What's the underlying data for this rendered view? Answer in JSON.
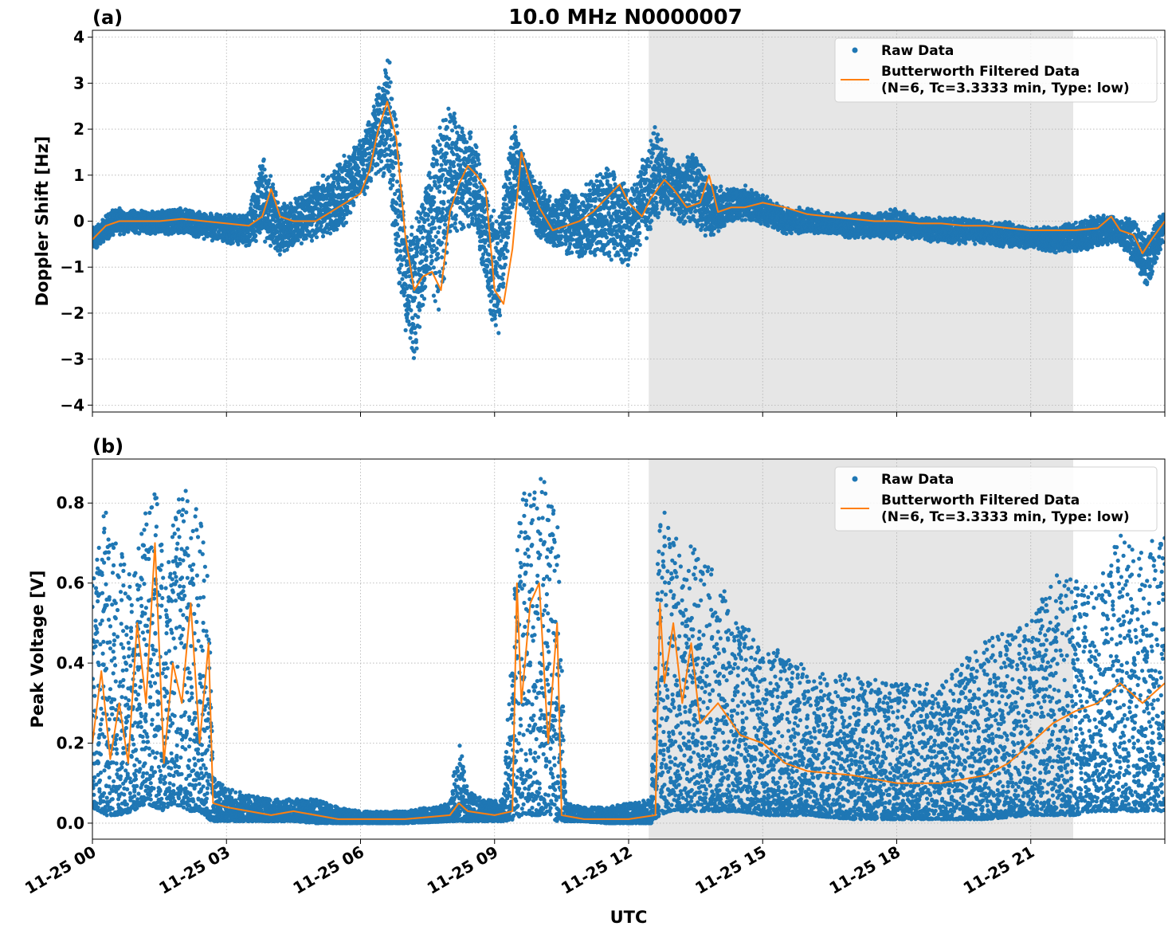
{
  "figure": {
    "title": "10.0 MHz N0000007",
    "xlabel": "UTC",
    "x_ticks": [
      "11-25 00",
      "11-25 03",
      "11-25 06",
      "11-25 09",
      "11-25 12",
      "11-25 15",
      "11-25 18",
      "11-25 21"
    ],
    "legend": {
      "raw": "Raw Data",
      "filtered_line1": "Butterworth Filtered Data",
      "filtered_line2": "(N=6, Tc=3.3333 min, Type: low)"
    },
    "colors": {
      "raw": "#1f77b4",
      "filtered": "#ff7f0e",
      "shade": "#e6e6e6",
      "grid": "#b0b0b0"
    }
  },
  "chart_data": [
    {
      "type": "scatter",
      "panel_label": "(a)",
      "ylabel": "Doppler Shift [Hz]",
      "x_unit": "hours UTC on 11-25",
      "xlim": [
        0,
        24
      ],
      "ylim": [
        -4.15,
        4.15
      ],
      "y_ticks": [
        -4,
        -3,
        -2,
        -1,
        0,
        1,
        2,
        3,
        4
      ],
      "y_tick_labels": [
        "−4",
        "−3",
        "−2",
        "−1",
        "0",
        "1",
        "2",
        "3",
        "4"
      ],
      "shaded_region": [
        12.45,
        21.95
      ],
      "grid": true,
      "legend_position": "upper right",
      "series": [
        {
          "name": "Raw Data",
          "style": "points",
          "envelope_x": [
            0,
            0.5,
            1.0,
            1.5,
            2.0,
            2.5,
            3.0,
            3.5,
            3.8,
            4.2,
            4.5,
            5.0,
            5.5,
            6.0,
            6.3,
            6.6,
            6.8,
            7.0,
            7.2,
            7.5,
            7.8,
            8.0,
            8.3,
            8.6,
            8.9,
            9.1,
            9.4,
            9.7,
            10.0,
            10.3,
            10.6,
            10.9,
            11.2,
            11.5,
            11.8,
            12.0,
            12.3,
            12.6,
            12.9,
            13.2,
            13.5,
            13.8,
            14.2,
            14.6,
            15.0,
            15.5,
            16.0,
            16.5,
            17.0,
            17.5,
            18.0,
            18.5,
            19.0,
            19.5,
            20.0,
            20.5,
            21.0,
            21.5,
            22.0,
            22.5,
            22.9,
            23.3,
            23.6,
            24.0
          ],
          "envelope_min": [
            -0.7,
            -0.3,
            -0.3,
            -0.3,
            -0.3,
            -0.4,
            -0.5,
            -0.6,
            -0.4,
            -0.8,
            -0.6,
            -0.4,
            -0.3,
            0.3,
            1.0,
            0.8,
            -1.2,
            -2.5,
            -3.3,
            -1.5,
            -2.2,
            -0.5,
            -0.2,
            -0.3,
            -2.2,
            -2.6,
            0.2,
            0.3,
            -0.5,
            -0.6,
            -0.7,
            -0.9,
            -0.8,
            -0.9,
            -0.9,
            -1.2,
            -0.5,
            -0.2,
            0.2,
            -0.1,
            -0.2,
            -0.4,
            -0.1,
            0.0,
            -0.1,
            -0.3,
            -0.3,
            -0.3,
            -0.4,
            -0.4,
            -0.4,
            -0.4,
            -0.5,
            -0.5,
            -0.5,
            -0.6,
            -0.6,
            -0.7,
            -0.7,
            -0.6,
            -0.5,
            -0.9,
            -1.5,
            -0.4
          ],
          "envelope_max": [
            -0.1,
            0.3,
            0.25,
            0.25,
            0.3,
            0.2,
            0.2,
            0.2,
            1.5,
            0.5,
            0.5,
            0.9,
            1.3,
            1.8,
            2.6,
            3.7,
            2.9,
            0.2,
            0.0,
            1.2,
            2.4,
            2.6,
            2.2,
            1.8,
            0.5,
            0.2,
            2.3,
            1.4,
            0.9,
            0.5,
            0.8,
            0.6,
            1.0,
            1.4,
            1.1,
            0.8,
            1.4,
            2.1,
            1.5,
            1.3,
            1.7,
            0.9,
            0.7,
            0.8,
            0.6,
            0.3,
            0.3,
            0.2,
            0.2,
            0.2,
            0.3,
            0.1,
            0.1,
            0.1,
            0.0,
            0.0,
            -0.1,
            -0.1,
            0.0,
            0.2,
            0.1,
            0.1,
            -0.3,
            0.3
          ]
        },
        {
          "name": "Butterworth Filtered Data",
          "style": "line",
          "x": [
            0,
            0.3,
            0.6,
            1.0,
            1.5,
            2.0,
            2.5,
            3.0,
            3.5,
            3.8,
            4.0,
            4.2,
            4.5,
            5.0,
            5.5,
            6.0,
            6.2,
            6.4,
            6.6,
            6.8,
            7.0,
            7.2,
            7.4,
            7.6,
            7.8,
            8.0,
            8.2,
            8.4,
            8.6,
            8.8,
            9.0,
            9.2,
            9.4,
            9.6,
            9.8,
            10.0,
            10.3,
            10.6,
            10.9,
            11.2,
            11.5,
            11.8,
            12.0,
            12.3,
            12.5,
            12.8,
            13.0,
            13.3,
            13.6,
            13.8,
            14.0,
            14.3,
            14.6,
            15.0,
            15.5,
            16.0,
            16.5,
            17.0,
            17.5,
            18.0,
            18.5,
            19.0,
            19.5,
            20.0,
            20.5,
            21.0,
            21.5,
            22.0,
            22.5,
            22.8,
            23.0,
            23.3,
            23.5,
            23.7,
            24.0
          ],
          "y": [
            -0.4,
            -0.1,
            0.0,
            0.0,
            0.0,
            0.05,
            0.0,
            -0.05,
            -0.1,
            0.1,
            0.7,
            0.1,
            0.0,
            0.0,
            0.3,
            0.6,
            1.1,
            2.0,
            2.6,
            1.8,
            -0.3,
            -1.5,
            -1.2,
            -1.1,
            -1.5,
            0.2,
            0.8,
            1.2,
            1.0,
            0.7,
            -1.5,
            -1.8,
            -0.6,
            1.5,
            0.8,
            0.3,
            -0.2,
            -0.1,
            0.0,
            0.2,
            0.5,
            0.8,
            0.4,
            0.1,
            0.5,
            0.9,
            0.7,
            0.3,
            0.4,
            1.0,
            0.2,
            0.3,
            0.3,
            0.4,
            0.3,
            0.15,
            0.1,
            0.05,
            0.0,
            0.0,
            -0.05,
            -0.05,
            -0.1,
            -0.1,
            -0.15,
            -0.2,
            -0.2,
            -0.2,
            -0.15,
            0.1,
            -0.2,
            -0.3,
            -0.7,
            -0.4,
            0.0
          ]
        }
      ]
    },
    {
      "type": "scatter",
      "panel_label": "(b)",
      "ylabel": "Peak Voltage [V]",
      "xlabel": "UTC",
      "x_unit": "hours UTC on 11-25",
      "xlim": [
        0,
        24
      ],
      "ylim": [
        -0.04,
        0.91
      ],
      "y_ticks": [
        0.0,
        0.2,
        0.4,
        0.6,
        0.8
      ],
      "y_tick_labels": [
        "0.0",
        "0.2",
        "0.4",
        "0.6",
        "0.8"
      ],
      "shaded_region": [
        12.45,
        21.95
      ],
      "grid": true,
      "legend_position": "upper right",
      "series": [
        {
          "name": "Raw Data",
          "style": "points",
          "envelope_x": [
            0,
            0.3,
            0.6,
            0.9,
            1.2,
            1.4,
            1.6,
            1.8,
            2.0,
            2.2,
            2.4,
            2.6,
            2.7,
            3.0,
            3.5,
            4.0,
            4.5,
            5.0,
            5.5,
            6.0,
            7.0,
            8.0,
            8.2,
            8.4,
            8.8,
            9.2,
            9.45,
            9.6,
            9.8,
            10.0,
            10.2,
            10.4,
            10.6,
            11.0,
            11.5,
            12.0,
            12.5,
            12.7,
            12.9,
            13.2,
            13.5,
            14.0,
            14.5,
            15.0,
            15.5,
            16.0,
            17.0,
            18.0,
            19.0,
            20.0,
            21.0,
            21.5,
            22.0,
            22.5,
            23.0,
            23.5,
            24.0
          ],
          "envelope_min": [
            0.04,
            0.02,
            0.02,
            0.03,
            0.05,
            0.04,
            0.03,
            0.05,
            0.04,
            0.03,
            0.03,
            0.01,
            0.005,
            0.005,
            0.005,
            0.005,
            0.005,
            0.0,
            0.0,
            0.0,
            0.0,
            0.005,
            0.005,
            0.005,
            0.005,
            0.005,
            0.01,
            0.02,
            0.02,
            0.02,
            0.02,
            0.005,
            0.005,
            0.005,
            0.0,
            0.0,
            0.0,
            0.02,
            0.03,
            0.03,
            0.03,
            0.03,
            0.03,
            0.02,
            0.02,
            0.02,
            0.01,
            0.01,
            0.01,
            0.01,
            0.02,
            0.02,
            0.02,
            0.03,
            0.03,
            0.03,
            0.03
          ],
          "envelope_max": [
            0.6,
            0.8,
            0.7,
            0.6,
            0.8,
            0.84,
            0.7,
            0.75,
            0.84,
            0.82,
            0.8,
            0.6,
            0.12,
            0.09,
            0.07,
            0.06,
            0.06,
            0.06,
            0.04,
            0.03,
            0.03,
            0.05,
            0.22,
            0.08,
            0.06,
            0.06,
            0.6,
            0.84,
            0.82,
            0.87,
            0.84,
            0.78,
            0.05,
            0.04,
            0.04,
            0.05,
            0.06,
            0.87,
            0.75,
            0.68,
            0.7,
            0.62,
            0.5,
            0.46,
            0.42,
            0.4,
            0.37,
            0.35,
            0.35,
            0.46,
            0.5,
            0.62,
            0.62,
            0.6,
            0.72,
            0.68,
            0.74
          ]
        },
        {
          "name": "Butterworth Filtered Data",
          "style": "line",
          "x": [
            0,
            0.2,
            0.4,
            0.6,
            0.8,
            1.0,
            1.2,
            1.4,
            1.6,
            1.8,
            2.0,
            2.2,
            2.4,
            2.6,
            2.7,
            3.0,
            3.5,
            4.0,
            4.5,
            5.0,
            5.5,
            6.0,
            7.0,
            8.0,
            8.2,
            8.4,
            9.0,
            9.4,
            9.5,
            9.6,
            9.8,
            10.0,
            10.2,
            10.4,
            10.5,
            11.0,
            12.0,
            12.6,
            12.7,
            12.8,
            13.0,
            13.2,
            13.4,
            13.6,
            14.0,
            14.5,
            15.0,
            15.5,
            16.0,
            17.0,
            18.0,
            19.0,
            20.0,
            20.5,
            21.0,
            21.5,
            22.0,
            22.5,
            23.0,
            23.5,
            24.0
          ],
          "y": [
            0.2,
            0.38,
            0.16,
            0.3,
            0.15,
            0.5,
            0.3,
            0.7,
            0.15,
            0.4,
            0.3,
            0.55,
            0.2,
            0.45,
            0.05,
            0.04,
            0.03,
            0.02,
            0.03,
            0.02,
            0.01,
            0.01,
            0.01,
            0.02,
            0.05,
            0.03,
            0.02,
            0.03,
            0.6,
            0.3,
            0.55,
            0.6,
            0.2,
            0.5,
            0.02,
            0.01,
            0.01,
            0.02,
            0.55,
            0.35,
            0.5,
            0.3,
            0.45,
            0.25,
            0.3,
            0.22,
            0.2,
            0.15,
            0.13,
            0.12,
            0.1,
            0.1,
            0.12,
            0.15,
            0.2,
            0.25,
            0.28,
            0.3,
            0.35,
            0.3,
            0.35
          ]
        }
      ]
    }
  ]
}
